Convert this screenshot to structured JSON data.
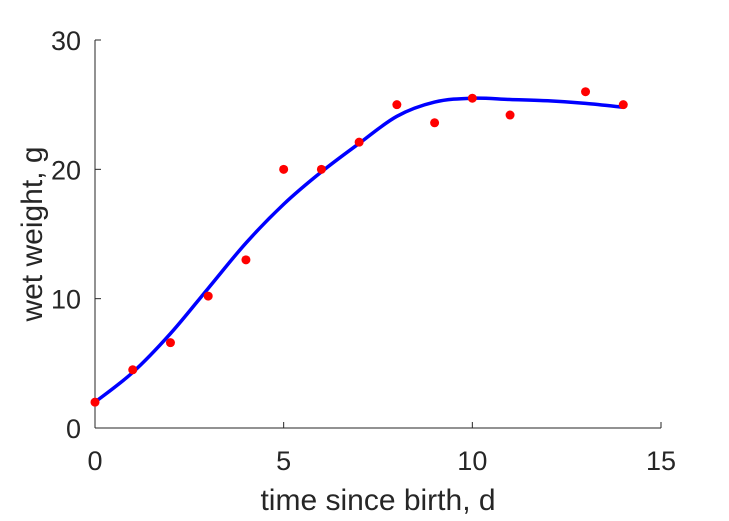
{
  "chart_data": {
    "type": "scatter",
    "xlabel": "time since birth, d",
    "ylabel": "wet weight, g",
    "xlim": [
      0,
      15
    ],
    "ylim": [
      0,
      30
    ],
    "xticks": [
      0,
      5,
      10,
      15
    ],
    "yticks": [
      0,
      10,
      20,
      30
    ],
    "xtick_labels": [
      "0",
      "5",
      "10",
      "15"
    ],
    "ytick_labels": [
      "0",
      "10",
      "20",
      "30"
    ],
    "grid": false,
    "legend": "none",
    "series": [
      {
        "kind": "points",
        "color": "#ff0000",
        "x": [
          0,
          1,
          2,
          3,
          4,
          5,
          6,
          7,
          8,
          9,
          10,
          11,
          13,
          14
        ],
        "y": [
          2.0,
          4.5,
          6.6,
          10.2,
          13.0,
          20.0,
          20.0,
          22.1,
          25.0,
          23.6,
          25.5,
          24.2,
          26.0,
          25.0
        ]
      },
      {
        "kind": "curve",
        "color": "#0000ff",
        "x": [
          0,
          1,
          2,
          3,
          4,
          5,
          6,
          7,
          8,
          9,
          10,
          11,
          12,
          13,
          14
        ],
        "y": [
          2.0,
          4.3,
          7.3,
          10.8,
          14.3,
          17.3,
          19.8,
          22.0,
          24.1,
          25.2,
          25.5,
          25.4,
          25.3,
          25.1,
          24.8
        ]
      }
    ]
  }
}
